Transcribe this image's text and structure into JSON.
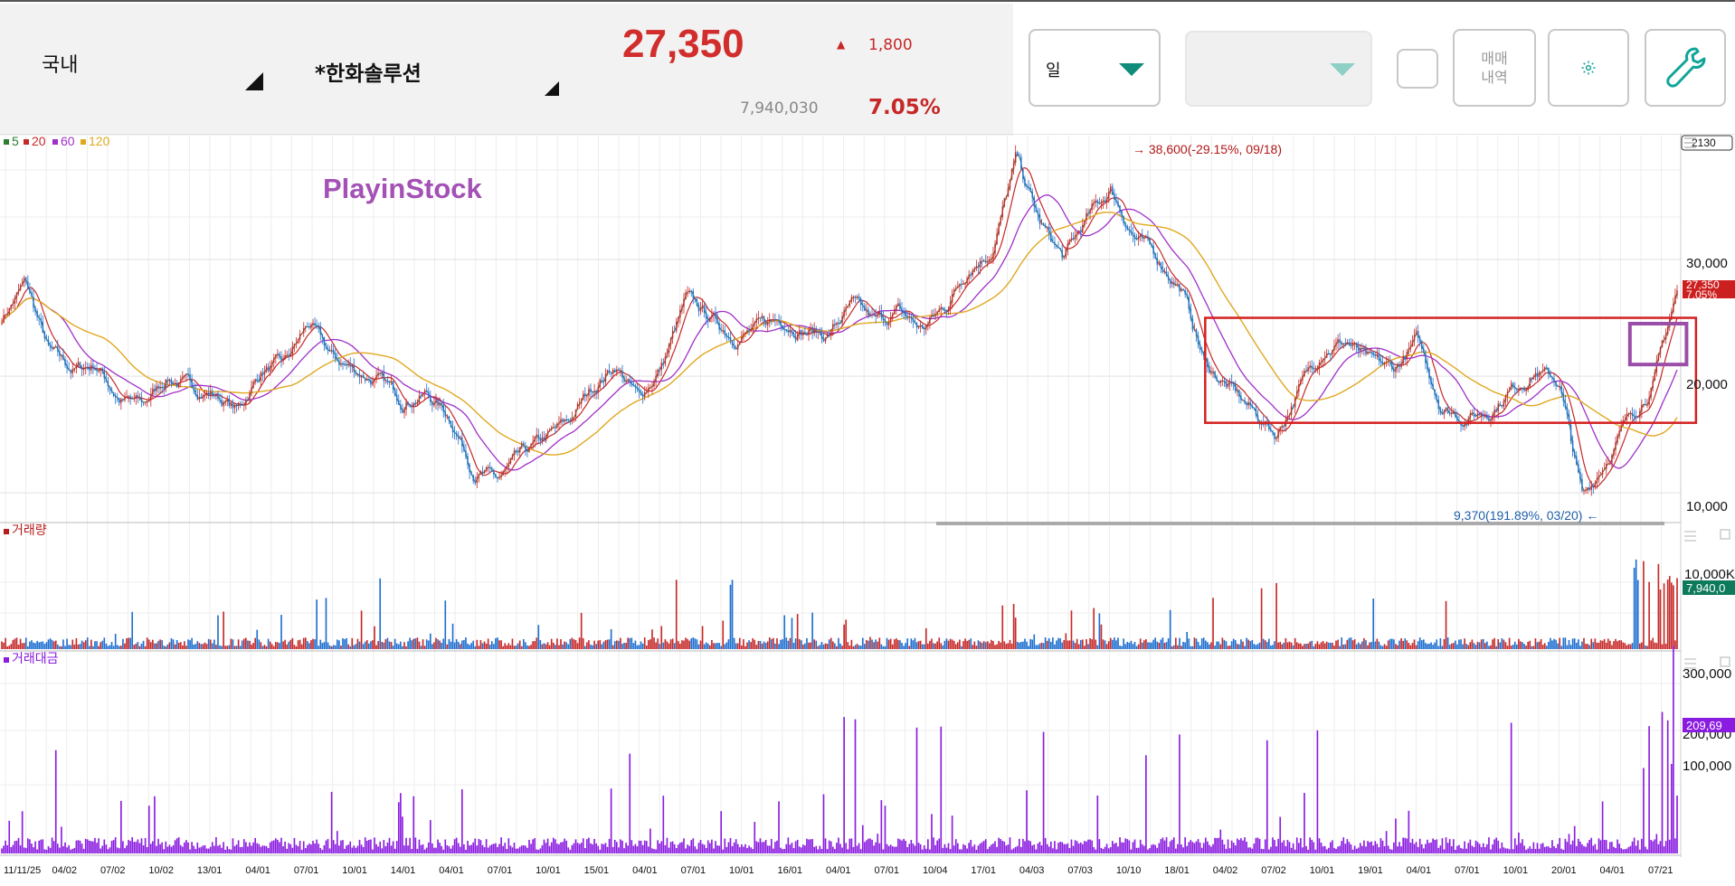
{
  "header": {
    "market": "국내",
    "stock_name": "*한화솔루션",
    "price": "27,350",
    "change_arrow": "▲",
    "change": "1,800",
    "volume": "7,940,030",
    "change_pct": "7.05%"
  },
  "controls": {
    "period_select": "일",
    "period_select_2": "",
    "trade_history_label_line1": "매매",
    "trade_history_label_line2": "내역",
    "settings_icon": "gear-icon",
    "tools_icon": "wrench-icon"
  },
  "colors": {
    "up": "#c62828",
    "down": "#1e6fd0",
    "ma5": "#2e7d32",
    "ma20": "#c62828",
    "ma60": "#a030c8",
    "ma120": "#e0a820",
    "amount": "#8a1be0",
    "highlight_box": "#d42020",
    "highlight_small_box": "#9b4ea8"
  },
  "chart_data": [
    {
      "type": "candlestick",
      "panel": "price",
      "watermark": "PlayinStock",
      "legend": [
        "5",
        "20",
        "60",
        "120"
      ],
      "legend_placement": "top-left",
      "y_axis": [
        "30,000",
        "20,000",
        "10,000"
      ],
      "ylim": [
        9000,
        40000
      ],
      "top_right_box": "2130",
      "x_ticks": [
        "11/11/25",
        "04/02",
        "07/02",
        "10/02",
        "13/01",
        "04/01",
        "07/01",
        "10/01",
        "14/01",
        "04/01",
        "07/01",
        "10/01",
        "15/01",
        "04/01",
        "07/01",
        "10/01",
        "16/01",
        "04/01",
        "07/01",
        "10/04",
        "17/01",
        "04/03",
        "07/03",
        "10/10",
        "18/01",
        "04/02",
        "07/02",
        "10/01",
        "19/01",
        "04/01",
        "07/01",
        "10/01",
        "20/01",
        "04/01",
        "07/21"
      ],
      "annotation_high": "38,600(-29.15%, 09/18)",
      "annotation_low": "9,370(191.89%, 03/20)",
      "current_price_label": "27,350",
      "current_pct_label": "7.05%",
      "price_path": [
        [
          0,
          25000
        ],
        [
          1,
          28000
        ],
        [
          2,
          22000
        ],
        [
          3,
          20500
        ],
        [
          4,
          21000
        ],
        [
          5,
          18000
        ],
        [
          6,
          17500
        ],
        [
          7,
          20000
        ],
        [
          8,
          19000
        ],
        [
          9,
          18500
        ],
        [
          10,
          17000
        ],
        [
          11,
          20500
        ],
        [
          12,
          21000
        ],
        [
          13,
          24500
        ],
        [
          14,
          21500
        ],
        [
          15,
          20500
        ],
        [
          16,
          19500
        ],
        [
          17,
          18000
        ],
        [
          18,
          18500
        ],
        [
          19,
          16500
        ],
        [
          20,
          12000
        ],
        [
          21,
          11000
        ],
        [
          22,
          13000
        ],
        [
          23,
          14500
        ],
        [
          24,
          16000
        ],
        [
          25,
          19000
        ],
        [
          26,
          21000
        ],
        [
          27,
          18000
        ],
        [
          28,
          21000
        ],
        [
          29,
          26500
        ],
        [
          30,
          25000
        ],
        [
          31,
          23500
        ],
        [
          32,
          24000
        ],
        [
          33,
          25000
        ],
        [
          34,
          24000
        ],
        [
          35,
          23500
        ],
        [
          36,
          26000
        ],
        [
          37,
          24500
        ],
        [
          38,
          25500
        ],
        [
          39,
          24000
        ],
        [
          40,
          26000
        ],
        [
          41,
          29500
        ],
        [
          42,
          31000
        ],
        [
          43,
          38600
        ],
        [
          44,
          33000
        ],
        [
          45,
          30000
        ],
        [
          46,
          33500
        ],
        [
          47,
          36000
        ],
        [
          48,
          32000
        ],
        [
          49,
          30000
        ],
        [
          50,
          27500
        ],
        [
          51,
          21000
        ],
        [
          52,
          19000
        ],
        [
          53,
          17000
        ],
        [
          54,
          15000
        ],
        [
          55,
          19000
        ],
        [
          56,
          22500
        ],
        [
          57,
          23000
        ],
        [
          58,
          21000
        ],
        [
          59,
          20500
        ],
        [
          60,
          23000
        ],
        [
          61,
          17500
        ],
        [
          62,
          16500
        ],
        [
          63,
          17000
        ],
        [
          64,
          19000
        ],
        [
          65,
          20500
        ],
        [
          66,
          19500
        ],
        [
          67,
          9370
        ],
        [
          68,
          13000
        ],
        [
          69,
          16500
        ],
        [
          70,
          19500
        ],
        [
          71,
          27350
        ]
      ],
      "highlight_box_range": {
        "x": [
          51,
          71.8
        ],
        "y": [
          16000,
          25000
        ]
      },
      "highlight_small_box_range": {
        "x": [
          69,
          71.4
        ],
        "y": [
          21000,
          24500
        ]
      }
    },
    {
      "type": "bar",
      "panel": "volume",
      "title": "거래량",
      "y_axis": [
        "10,000K"
      ],
      "current_label": "7,940,0"
    },
    {
      "type": "bar",
      "panel": "amount",
      "title": "거래대금",
      "y_axis": [
        "300,000",
        "200,000",
        "100,000"
      ],
      "current_label": "209,69"
    }
  ]
}
